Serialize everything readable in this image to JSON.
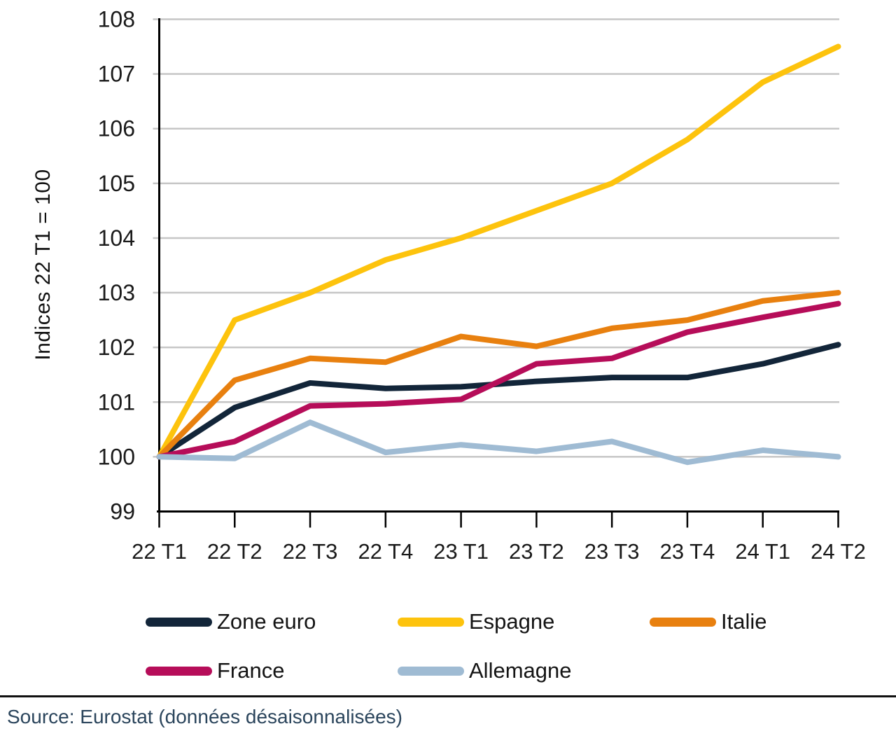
{
  "source": {
    "text": "Source: Eurostat (données désaisonnalisées)"
  },
  "colors": {
    "grid": "#c6c6c6",
    "axis": "#000000",
    "text": "#1a1a1a",
    "source_text": "#2b455c",
    "divider": "#101010"
  },
  "chart_data": {
    "type": "line",
    "title": "",
    "ylabel": "Indices 22 T1 = 100",
    "xlabel": "",
    "categories": [
      "22 T1",
      "22 T2",
      "22 T3",
      "22 T4",
      "23 T1",
      "23 T2",
      "23 T3",
      "23 T4",
      "24 T1",
      "24 T2"
    ],
    "yticks": [
      99,
      100,
      101,
      102,
      103,
      104,
      105,
      106,
      107,
      108
    ],
    "ylim": [
      99,
      108
    ],
    "grid": true,
    "legend_position": "bottom",
    "series": [
      {
        "name": "Zone euro",
        "color": "#122539",
        "values": [
          100,
          100.9,
          101.35,
          101.25,
          101.28,
          101.38,
          101.45,
          101.45,
          101.7,
          102.05
        ]
      },
      {
        "name": "Espagne",
        "color": "#fdc30d",
        "values": [
          100,
          102.5,
          103.0,
          103.6,
          104.0,
          104.5,
          105.0,
          105.8,
          106.85,
          107.5
        ]
      },
      {
        "name": "Italie",
        "color": "#e8800f",
        "values": [
          100,
          101.4,
          101.8,
          101.73,
          102.2,
          102.02,
          102.35,
          102.5,
          102.85,
          103.0
        ]
      },
      {
        "name": "France",
        "color": "#b60d59",
        "values": [
          100,
          100.28,
          100.93,
          100.97,
          101.05,
          101.7,
          101.8,
          102.28,
          102.55,
          102.8
        ]
      },
      {
        "name": "Allemagne",
        "color": "#9fbbd3",
        "values": [
          100,
          99.97,
          100.63,
          100.08,
          100.22,
          100.1,
          100.28,
          99.9,
          100.12,
          100.0
        ]
      }
    ]
  }
}
